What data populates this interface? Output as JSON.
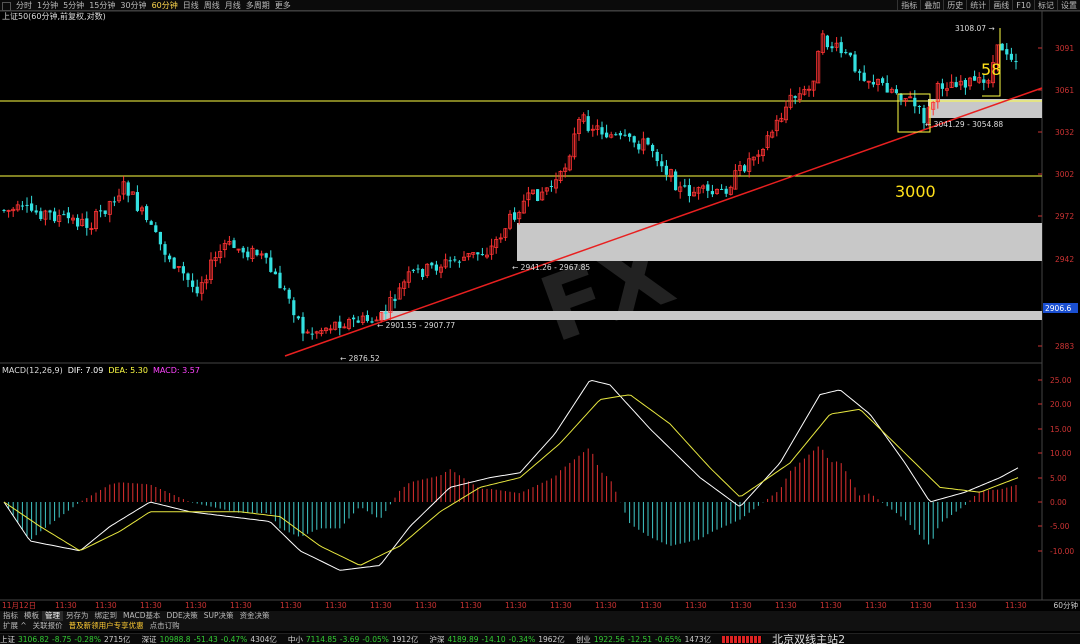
{
  "toolbar": {
    "periods": [
      "分时",
      "1分钟",
      "5分钟",
      "15分钟",
      "30分钟",
      "60分钟",
      "日线",
      "周线",
      "月线",
      "多周期",
      "更多"
    ],
    "active_period": "60分钟",
    "right_buttons": [
      "指标",
      "叠加",
      "历史",
      "统计",
      "画线",
      "F10",
      "标记",
      "设置"
    ]
  },
  "main_panel": {
    "title": "上证50(60分钟,前复权,对数)",
    "price_axis_labels": [
      "3091",
      "3061",
      "3032",
      "3002",
      "2972",
      "2942",
      "2883"
    ],
    "current_price_tag": "2906.6",
    "annotations": {
      "high_label": "3108.07",
      "low_label": "2876.52",
      "zone1_label": "2901.55 - 2907.77",
      "zone2_label": "2941.26 - 2967.85",
      "zone3_label": "3041.29 - 3054.88",
      "big_label_3000": "3000",
      "big_label_58": "58"
    },
    "watermark": "FX"
  },
  "macd_panel": {
    "name": "MACD(12,26,9)",
    "dif_label": "DIF: 7.09",
    "dea_label": "DEA: 5.30",
    "macd_label": "MACD: 3.57",
    "axis_labels": [
      "25.00",
      "20.00",
      "15.00",
      "10.00",
      "5.00",
      "0.00",
      "-5.00",
      "-10.00"
    ]
  },
  "time_axis": {
    "first": "11月12日",
    "label": "11:30",
    "period": "60分钟"
  },
  "tabs_row1": [
    "指标",
    "模板",
    "管理",
    "另存为",
    "绑定到",
    "MACD基本",
    "DDE决策",
    "SUP决策",
    "资金决策"
  ],
  "tabs_row1_selected": "管理",
  "tabs_row2": [
    "扩展 ^",
    "关联报价",
    "普及新领用户专享优惠",
    "点击订购"
  ],
  "status": [
    {
      "name": "上证",
      "price": "3106.82",
      "chg": "-8.75",
      "pct": "-0.28%",
      "amt": "2715亿"
    },
    {
      "name": "深证",
      "price": "10988.8",
      "chg": "-51.43",
      "pct": "-0.47%",
      "amt": "4304亿"
    },
    {
      "name": "中小",
      "price": "7114.85",
      "chg": "-3.69",
      "pct": "-0.05%",
      "amt": "1912亿"
    },
    {
      "name": "沪深",
      "price": "4189.89",
      "chg": "-14.10",
      "pct": "-0.34%",
      "amt": "1962亿"
    },
    {
      "name": "创业",
      "price": "1922.56",
      "chg": "-12.51",
      "pct": "-0.65%",
      "amt": "1473亿"
    }
  ],
  "server": "北京双线主站2",
  "colors": {
    "up": "#ff3333",
    "down": "#33e0e0",
    "yellow_line": "#ffff44",
    "trend_line": "#e82020",
    "zone_fill": "#c8c8c8"
  }
}
